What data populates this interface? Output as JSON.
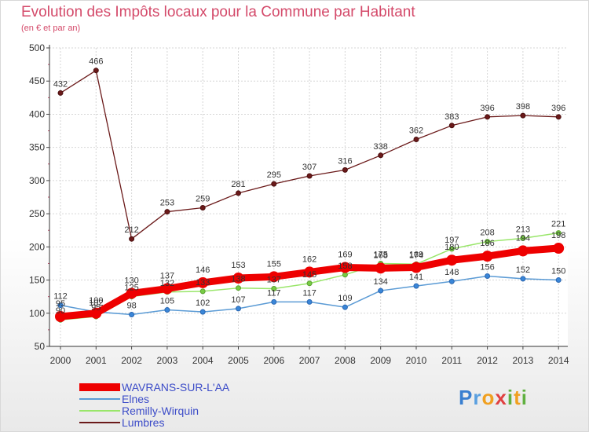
{
  "title": "Evolution des Impôts locaux pour la Commune par Habitant",
  "subtitle": "(en € et par an)",
  "chart_data": {
    "type": "line",
    "title": "Evolution des Impôts locaux pour la Commune par Habitant",
    "subtitle": "(en € et par an)",
    "x": [
      2000,
      2001,
      2002,
      2003,
      2004,
      2005,
      2006,
      2007,
      2008,
      2009,
      2010,
      2011,
      2012,
      2013,
      2014
    ],
    "y_ticks": [
      50,
      100,
      150,
      200,
      250,
      300,
      350,
      400,
      450,
      500
    ],
    "ylim": [
      50,
      500
    ],
    "grid": true,
    "legend_position": "bottom-left",
    "series": [
      {
        "name": "WAVRANS-SUR-L'AA",
        "color": "#ee0000",
        "values": [
          95,
          100,
          130,
          137,
          146,
          153,
          155,
          162,
          169,
          168,
          169,
          180,
          186,
          194,
          198
        ]
      },
      {
        "name": "Elnes",
        "color": "#5b9bd5",
        "values": [
          112,
          102,
          98,
          105,
          102,
          107,
          117,
          117,
          109,
          134,
          141,
          148,
          156,
          152,
          150
        ]
      },
      {
        "name": "Remilly-Wirquin",
        "color": "#99e66a",
        "values": [
          90,
          95,
          125,
          132,
          133,
          138,
          137,
          145,
          158,
          175,
          174,
          197,
          208,
          213,
          221
        ]
      },
      {
        "name": "Lumbres",
        "color": "#6b1a1a",
        "values": [
          432,
          466,
          212,
          253,
          259,
          281,
          295,
          307,
          316,
          338,
          362,
          383,
          396,
          398,
          396
        ]
      }
    ]
  },
  "logo": {
    "p": "P",
    "r": "r",
    "o": "o",
    "x": "x",
    "i": "i",
    "t": "t",
    "i2": "i"
  }
}
